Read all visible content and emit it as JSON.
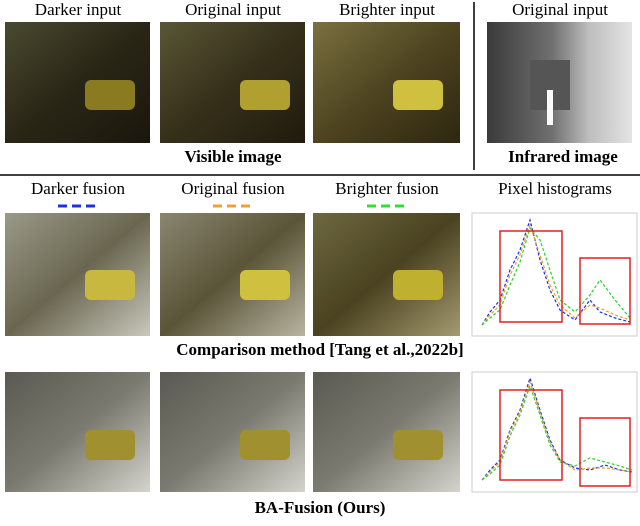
{
  "visible": {
    "labels": [
      "Darker input",
      "Original input",
      "Brighter input"
    ],
    "caption": "Visible image"
  },
  "infrared": {
    "label": "Original input",
    "caption": "Infrared image"
  },
  "fusion_labels": [
    "Darker fusion",
    "Original fusion",
    "Brighter fusion"
  ],
  "histogram_label": "Pixel histograms",
  "rows": [
    {
      "caption": "Comparison method [Tang et al.,2022b]"
    },
    {
      "caption": "BA-Fusion (Ours)"
    }
  ]
}
